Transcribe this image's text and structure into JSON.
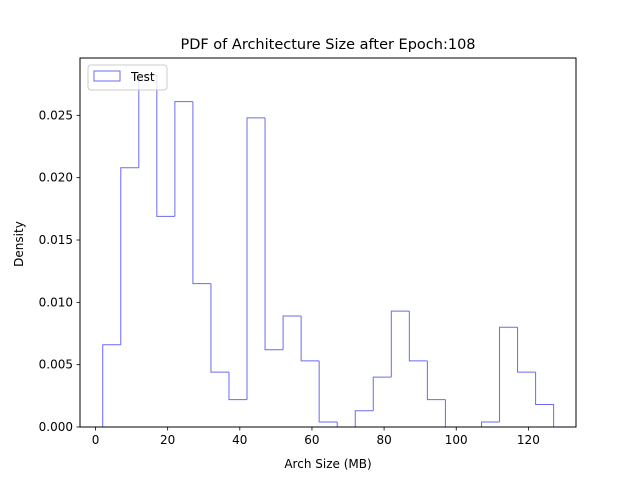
{
  "chart_data": {
    "type": "histogram",
    "title": "PDF of Architecture Size after Epoch:108",
    "xlabel": "Arch Size (MB)",
    "ylabel": "Density",
    "xlim": [
      -4.3,
      133.2
    ],
    "ylim": [
      0,
      0.0296
    ],
    "xticks": [
      0,
      20,
      40,
      60,
      80,
      100,
      120
    ],
    "yticks": [
      0.0,
      0.005,
      0.01,
      0.015,
      0.02,
      0.025
    ],
    "ytick_labels": [
      "0.000",
      "0.005",
      "0.010",
      "0.015",
      "0.020",
      "0.025"
    ],
    "legend_position": "upper-left",
    "histtype": "step",
    "color": "#6b6bf0",
    "bin_width": 5,
    "series": [
      {
        "name": "Test",
        "bin_edges": [
          2,
          7,
          12,
          17,
          22,
          27,
          32,
          37,
          42,
          47,
          52,
          57,
          62,
          67,
          72,
          77,
          82,
          87,
          92,
          97,
          102,
          107,
          112,
          117,
          122,
          127
        ],
        "values": [
          0.0066,
          0.0208,
          0.0282,
          0.0169,
          0.0261,
          0.0115,
          0.0044,
          0.0022,
          0.0248,
          0.0062,
          0.0089,
          0.0053,
          0.0004,
          0.0,
          0.0013,
          0.004,
          0.0093,
          0.0053,
          0.0022,
          0.0,
          0.0,
          0.0004,
          0.008,
          0.0044,
          0.0018
        ]
      }
    ]
  }
}
